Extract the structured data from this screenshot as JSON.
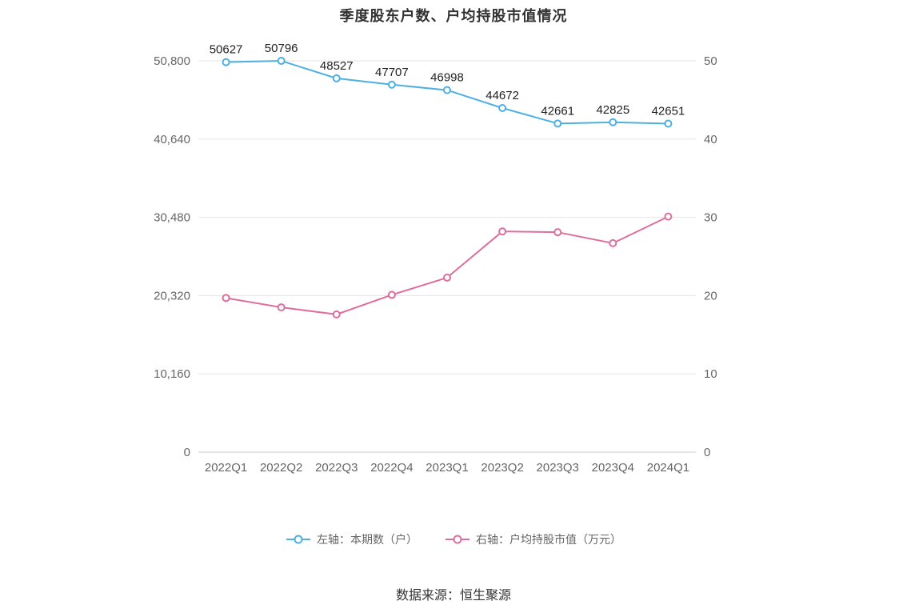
{
  "title": "季度股东户数、户均持股市值情况",
  "footer": "数据来源：恒生聚源",
  "colors": {
    "left_series": "#4eb0e2",
    "right_series": "#de6e9e",
    "grid": "#e6e6e6",
    "axis_line": "#cccccc",
    "tick_label": "#666666",
    "data_label": "#222222"
  },
  "chart_data": {
    "type": "line",
    "categories": [
      "2022Q1",
      "2022Q2",
      "2022Q3",
      "2022Q4",
      "2023Q1",
      "2023Q2",
      "2023Q3",
      "2023Q4",
      "2024Q1"
    ],
    "series": [
      {
        "name": "左轴：本期数（户）",
        "axis": "left",
        "color": "#4eb0e2",
        "values": [
          50627,
          50796,
          48527,
          47707,
          46998,
          44672,
          42661,
          42825,
          42651
        ],
        "show_labels": true
      },
      {
        "name": "右轴：户均持股市值（万元）",
        "axis": "right",
        "color": "#de6e9e",
        "values": [
          19.7,
          18.5,
          17.6,
          20.1,
          22.3,
          28.2,
          28.1,
          26.7,
          30.1
        ],
        "show_labels": false
      }
    ],
    "left_axis": {
      "max": 50800,
      "ticks": [
        0,
        10160,
        20320,
        30480,
        40640,
        50800
      ],
      "labels": [
        "0",
        "10,160",
        "20,320",
        "30,480",
        "40,640",
        "50,800"
      ]
    },
    "right_axis": {
      "max": 50,
      "ticks": [
        0,
        10,
        20,
        30,
        40,
        50
      ],
      "labels": [
        "0",
        "10",
        "20",
        "30",
        "40",
        "50"
      ]
    },
    "grid": true,
    "legend_position": "bottom",
    "title": "季度股东户数、户均持股市值情况",
    "xlabel": "",
    "ylabel_left": "本期数（户）",
    "ylabel_right": "户均持股市值（万元）"
  }
}
